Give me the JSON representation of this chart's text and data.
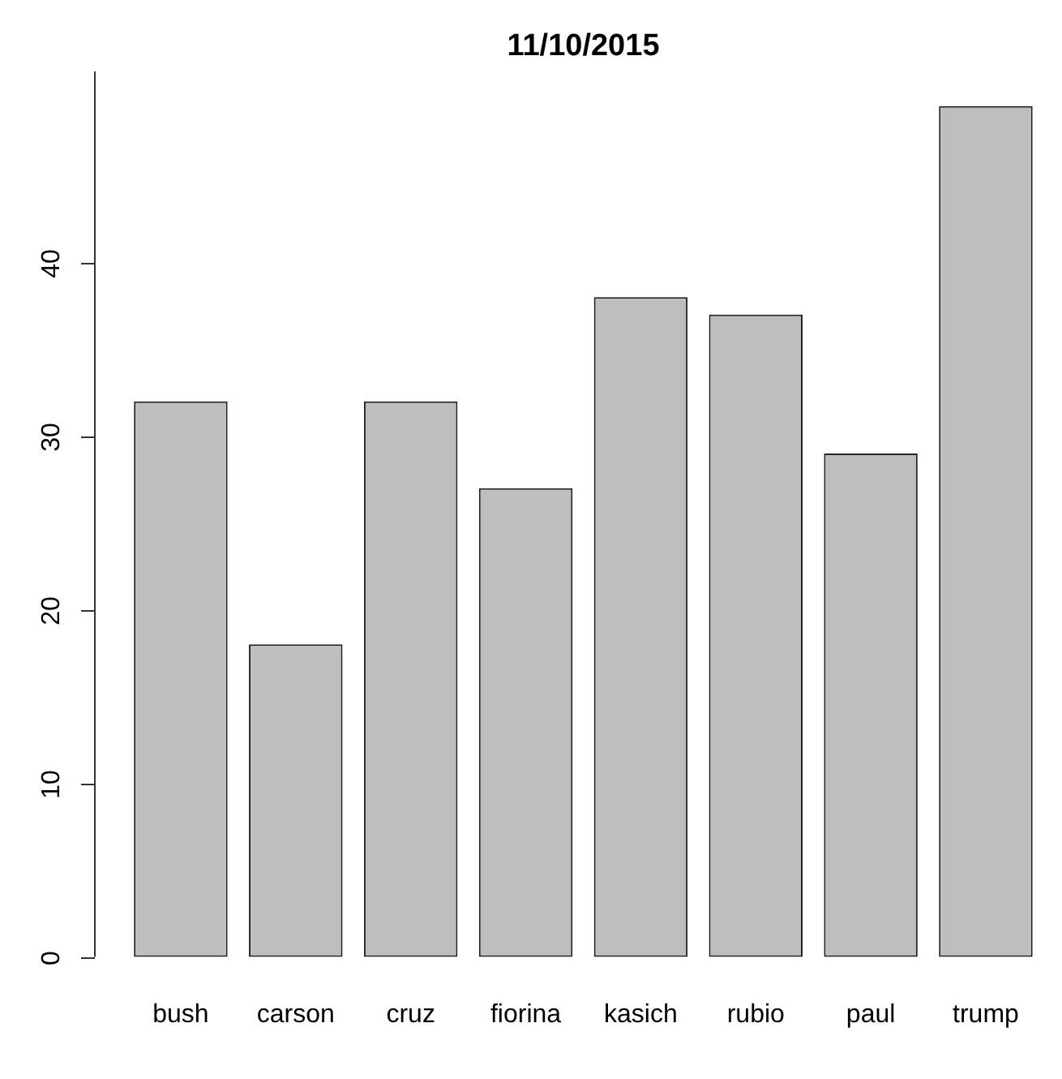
{
  "chart_data": {
    "type": "bar",
    "title": "11/10/2015",
    "categories": [
      "bush",
      "carson",
      "cruz",
      "fiorina",
      "kasich",
      "rubio",
      "paul",
      "trump"
    ],
    "values": [
      32,
      18,
      32,
      27,
      38,
      37,
      29,
      49
    ],
    "color": "#bebebe",
    "ylim": [
      0,
      51
    ],
    "yticks": [
      0,
      10,
      20,
      30,
      40
    ],
    "grid": false,
    "legend": false
  }
}
